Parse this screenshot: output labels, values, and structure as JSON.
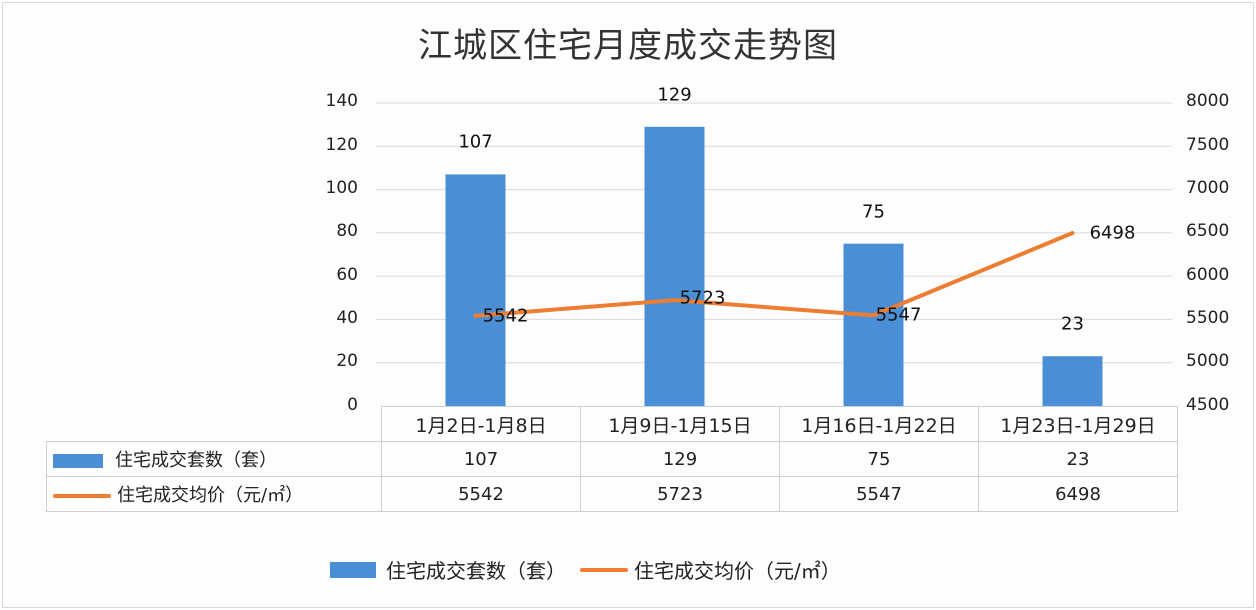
{
  "title": "江城区住宅月度成交走势图",
  "axes": {
    "left_ticks": [
      "140",
      "120",
      "100",
      "80",
      "60",
      "40",
      "20",
      "0"
    ],
    "right_ticks": [
      "8000",
      "7500",
      "7000",
      "6500",
      "6000",
      "5500",
      "5000",
      "4500"
    ]
  },
  "colors": {
    "bar": "#4a8fd6",
    "line": "#ed7d31",
    "grid": "#d9d9d9"
  },
  "table": {
    "categories": [
      "1月2日-1月8日",
      "1月9日-1月15日",
      "1月16日-1月22日",
      "1月23日-1月29日"
    ],
    "rows": [
      {
        "label": "住宅成交套数（套）",
        "values": [
          "107",
          "129",
          "75",
          "23"
        ]
      },
      {
        "label": "住宅成交均价（元/㎡）",
        "values": [
          "5542",
          "5723",
          "5547",
          "6498"
        ]
      }
    ]
  },
  "bar_labels": [
    "107",
    "129",
    "75",
    "23"
  ],
  "line_labels": [
    "5542",
    "5723",
    "5547",
    "6498"
  ],
  "legend": [
    "住宅成交套数（套）",
    "住宅成交均价（元/㎡）"
  ],
  "chart_data": {
    "type": "bar",
    "title": "江城区住宅月度成交走势图",
    "categories": [
      "1月2日-1月8日",
      "1月9日-1月15日",
      "1月16日-1月22日",
      "1月23日-1月29日"
    ],
    "series": [
      {
        "name": "住宅成交套数（套）",
        "type": "bar",
        "axis": "left",
        "values": [
          107,
          129,
          75,
          23
        ],
        "color": "#4a8fd6"
      },
      {
        "name": "住宅成交均价（元/㎡）",
        "type": "line",
        "axis": "right",
        "values": [
          5542,
          5723,
          5547,
          6498
        ],
        "color": "#ed7d31"
      }
    ],
    "xlabel": "",
    "ylabel": "",
    "ylim": [
      0,
      140
    ],
    "y2lim": [
      4500,
      8000
    ],
    "yticks": [
      0,
      20,
      40,
      60,
      80,
      100,
      120,
      140
    ],
    "y2ticks": [
      4500,
      5000,
      5500,
      6000,
      6500,
      7000,
      7500,
      8000
    ],
    "grid": true,
    "data_table": true,
    "legend_position": "bottom"
  }
}
